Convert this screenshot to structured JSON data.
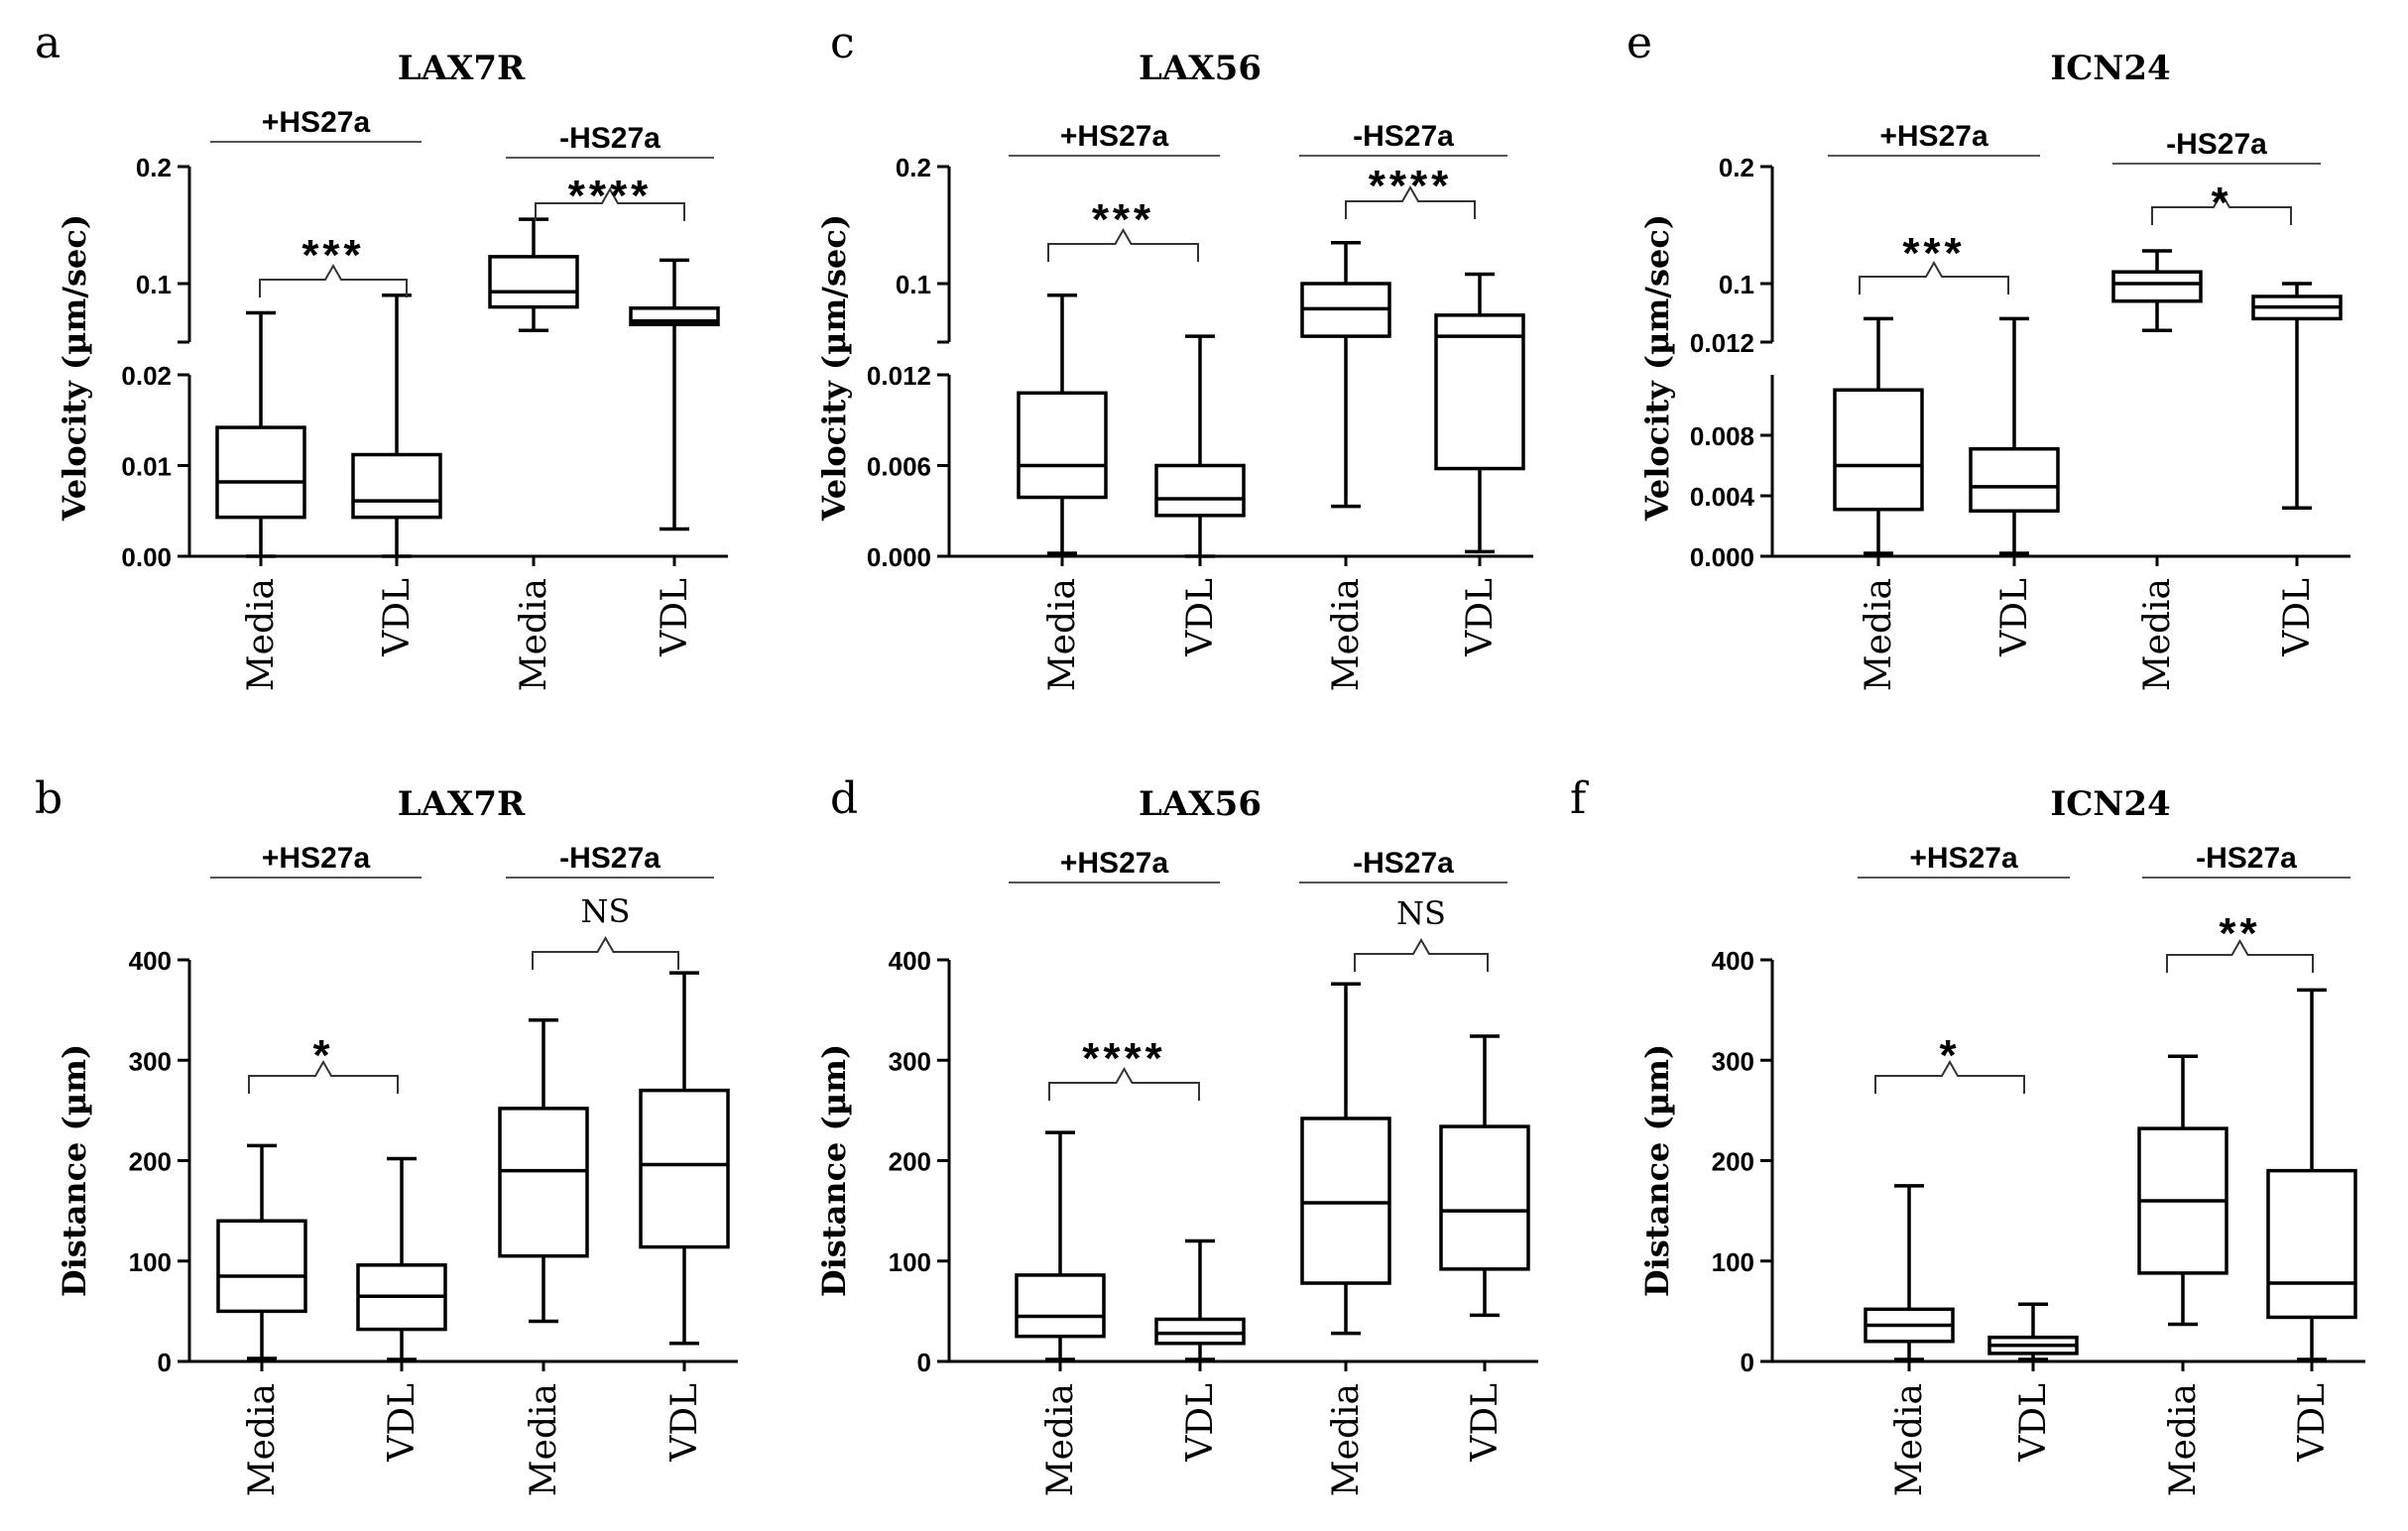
{
  "figure": {
    "panel_count": 6,
    "colors": {
      "stroke": "#000000",
      "bracket": "#333333",
      "background": "#ffffff"
    }
  },
  "chart_data": [
    {
      "panel": "a",
      "type": "boxplot",
      "title": "LAX7R",
      "ylabel": "Velocity (µm/sec)",
      "groups": [
        "+HS27a",
        "-HS27a"
      ],
      "categories": [
        "Media",
        "VDL",
        "Media",
        "VDL"
      ],
      "yaxis": {
        "broken": true,
        "lower_range": [
          0,
          0.02
        ],
        "upper_range": [
          0.05,
          0.2
        ],
        "lower_ticks": [
          "0.00",
          "0.01",
          "0.02"
        ],
        "upper_ticks": [
          "0.1",
          "0.2"
        ]
      },
      "boxes": [
        {
          "min": 0.0,
          "q1": 0.0043,
          "median": 0.0082,
          "q3": 0.0142,
          "max": 0.075
        },
        {
          "min": 0.0,
          "q1": 0.0043,
          "median": 0.0061,
          "q3": 0.0112,
          "max": 0.09
        },
        {
          "min": 0.06,
          "q1": 0.08,
          "median": 0.093,
          "q3": 0.123,
          "max": 0.155
        },
        {
          "min": 0.003,
          "q1": 0.065,
          "median": 0.068,
          "q3": 0.079,
          "max": 0.12
        }
      ],
      "comparisons": [
        {
          "label": "***"
        },
        {
          "label": "****"
        }
      ]
    },
    {
      "panel": "b",
      "type": "boxplot",
      "title": "LAX7R",
      "ylabel": "Distance (µm)",
      "groups": [
        "+HS27a",
        "-HS27a"
      ],
      "categories": [
        "Media",
        "VDL",
        "Media",
        "VDL"
      ],
      "yaxis": {
        "broken": false,
        "range": [
          0,
          400
        ],
        "ticks": [
          "0",
          "100",
          "200",
          "300",
          "400"
        ]
      },
      "boxes": [
        {
          "min": 3,
          "q1": 50,
          "median": 85,
          "q3": 140,
          "max": 215
        },
        {
          "min": 2,
          "q1": 32,
          "median": 65,
          "q3": 96,
          "max": 202
        },
        {
          "min": 40,
          "q1": 105,
          "median": 190,
          "q3": 252,
          "max": 340
        },
        {
          "min": 18,
          "q1": 114,
          "median": 196,
          "q3": 270,
          "max": 387
        }
      ],
      "comparisons": [
        {
          "label": "*"
        },
        {
          "label": "NS"
        }
      ]
    },
    {
      "panel": "c",
      "type": "boxplot",
      "title": "LAX56",
      "ylabel": "Velocity (µm/sec)",
      "groups": [
        "+HS27a",
        "-HS27a"
      ],
      "categories": [
        "Media",
        "VDL",
        "Media",
        "VDL"
      ],
      "yaxis": {
        "broken": true,
        "lower_range": [
          0,
          0.012
        ],
        "upper_range": [
          0.05,
          0.2
        ],
        "lower_ticks": [
          "0.000",
          "0.006",
          "0.012"
        ],
        "upper_ticks": [
          "0.1",
          "0.2"
        ]
      },
      "boxes": [
        {
          "min": 0.0002,
          "q1": 0.0039,
          "median": 0.006,
          "q3": 0.0108,
          "max": 0.09
        },
        {
          "min": 0.0,
          "q1": 0.0027,
          "median": 0.0038,
          "q3": 0.006,
          "max": 0.055
        },
        {
          "min": 0.0033,
          "q1": 0.055,
          "median": 0.0785,
          "q3": 0.1,
          "max": 0.135
        },
        {
          "min": 0.0003,
          "q1": 0.0058,
          "median": 0.055,
          "q3": 0.073,
          "max": 0.108
        }
      ],
      "comparisons": [
        {
          "label": "***"
        },
        {
          "label": "****"
        }
      ]
    },
    {
      "panel": "d",
      "type": "boxplot",
      "title": "LAX56",
      "ylabel": "Distance (µm)",
      "groups": [
        "+HS27a",
        "-HS27a"
      ],
      "categories": [
        "Media",
        "VDL",
        "Media",
        "VDL"
      ],
      "yaxis": {
        "broken": false,
        "range": [
          0,
          400
        ],
        "ticks": [
          "0",
          "100",
          "200",
          "300",
          "400"
        ]
      },
      "boxes": [
        {
          "min": 2,
          "q1": 25,
          "median": 45,
          "q3": 86,
          "max": 228
        },
        {
          "min": 2,
          "q1": 18,
          "median": 28,
          "q3": 42,
          "max": 120
        },
        {
          "min": 28,
          "q1": 78,
          "median": 158,
          "q3": 242,
          "max": 376
        },
        {
          "min": 46,
          "q1": 92,
          "median": 150,
          "q3": 234,
          "max": 324
        }
      ],
      "comparisons": [
        {
          "label": "****"
        },
        {
          "label": "NS"
        }
      ]
    },
    {
      "panel": "e",
      "type": "boxplot",
      "title": "ICN24",
      "ylabel": "Velocity (µm/sec)",
      "groups": [
        "+HS27a",
        "-HS27a"
      ],
      "categories": [
        "Media",
        "VDL",
        "Media",
        "VDL"
      ],
      "yaxis": {
        "broken": true,
        "lower_range": [
          0,
          0.012
        ],
        "upper_range": [
          0.05,
          0.2
        ],
        "lower_ticks": [
          "0.000",
          "0.004",
          "0.008",
          "0.012"
        ],
        "upper_ticks": [
          "0.1",
          "0.2"
        ]
      },
      "boxes": [
        {
          "min": 0.0002,
          "q1": 0.0031,
          "median": 0.006,
          "q3": 0.011,
          "max": 0.07
        },
        {
          "min": 0.0002,
          "q1": 0.003,
          "median": 0.0046,
          "q3": 0.0071,
          "max": 0.07
        },
        {
          "min": 0.06,
          "q1": 0.085,
          "median": 0.1,
          "q3": 0.11,
          "max": 0.128
        },
        {
          "min": 0.0032,
          "q1": 0.07,
          "median": 0.08,
          "q3": 0.089,
          "max": 0.1
        }
      ],
      "comparisons": [
        {
          "label": "***"
        },
        {
          "label": "*"
        }
      ]
    },
    {
      "panel": "f",
      "type": "boxplot",
      "title": "ICN24",
      "ylabel": "Distance (µm)",
      "groups": [
        "+HS27a",
        "-HS27a"
      ],
      "categories": [
        "Media",
        "VDL",
        "Media",
        "VDL"
      ],
      "yaxis": {
        "broken": false,
        "range": [
          0,
          400
        ],
        "ticks": [
          "0",
          "100",
          "200",
          "300",
          "400"
        ]
      },
      "boxes": [
        {
          "min": 2,
          "q1": 20,
          "median": 36,
          "q3": 52,
          "max": 175
        },
        {
          "min": 2,
          "q1": 8,
          "median": 16,
          "q3": 24,
          "max": 57
        },
        {
          "min": 37,
          "q1": 88,
          "median": 160,
          "q3": 232,
          "max": 304
        },
        {
          "min": 2,
          "q1": 44,
          "median": 78,
          "q3": 190,
          "max": 370
        }
      ],
      "comparisons": [
        {
          "label": "*"
        },
        {
          "label": "**"
        }
      ]
    }
  ]
}
